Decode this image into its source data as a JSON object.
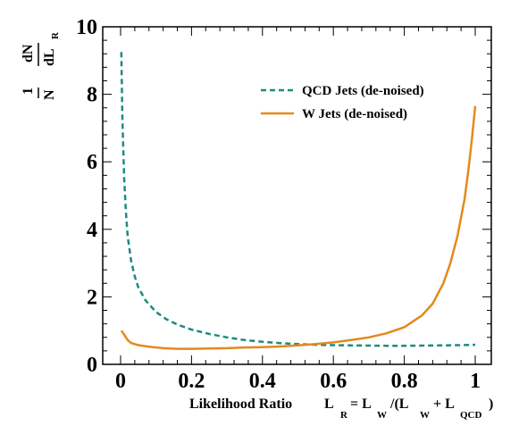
{
  "chart_data": {
    "type": "line",
    "xlabel": {
      "prefix": "Likelihood Ratio",
      "eq_lhs": "L",
      "eq_lhs_sub": "R",
      "eq_mid": "= L",
      "eq_mid_sub": "W",
      "eq_paren": "/(L",
      "eq_paren_sub": "W",
      "eq_plus": "+ L",
      "eq_plus_sub": "QCD",
      "eq_close": ")"
    },
    "ylabel": {
      "num_one": "1",
      "num_dN": "dN",
      "den_N": "N",
      "den_dL": "dL",
      "den_sub": "R"
    },
    "xlim": [
      0,
      1
    ],
    "ylim": [
      0,
      10
    ],
    "xticks": [
      "0",
      "0.2",
      "0.4",
      "0.6",
      "0.8",
      "1"
    ],
    "xtick_values": [
      0,
      0.2,
      0.4,
      0.6,
      0.8,
      1
    ],
    "yticks": [
      "0",
      "2",
      "4",
      "6",
      "8",
      "10"
    ],
    "ytick_values": [
      0,
      2,
      4,
      6,
      8,
      10
    ],
    "legend_position": "top-right",
    "colors": {
      "qcd": "#1f8a80",
      "w": "#e5891b"
    },
    "series": [
      {
        "name": "QCD Jets (de-noised)",
        "style": "dashed",
        "x": [
          0.002,
          0.005,
          0.01,
          0.015,
          0.02,
          0.03,
          0.04,
          0.05,
          0.07,
          0.1,
          0.13,
          0.16,
          0.2,
          0.25,
          0.3,
          0.35,
          0.4,
          0.45,
          0.5,
          0.55,
          0.6,
          0.65,
          0.7,
          0.75,
          0.8,
          0.85,
          0.9,
          0.95,
          1.0
        ],
        "y": [
          9.25,
          7.3,
          5.5,
          4.5,
          3.8,
          3.05,
          2.6,
          2.28,
          1.9,
          1.55,
          1.33,
          1.18,
          1.03,
          0.9,
          0.8,
          0.72,
          0.67,
          0.63,
          0.6,
          0.58,
          0.57,
          0.56,
          0.555,
          0.55,
          0.55,
          0.555,
          0.56,
          0.57,
          0.58
        ]
      },
      {
        "name": "W Jets (de-noised)",
        "style": "solid",
        "x": [
          0.002,
          0.01,
          0.02,
          0.03,
          0.05,
          0.08,
          0.12,
          0.16,
          0.2,
          0.25,
          0.3,
          0.35,
          0.4,
          0.45,
          0.5,
          0.55,
          0.6,
          0.65,
          0.7,
          0.75,
          0.8,
          0.85,
          0.88,
          0.91,
          0.93,
          0.95,
          0.97,
          0.98,
          0.99,
          1.0
        ],
        "y": [
          1.0,
          0.88,
          0.72,
          0.63,
          0.57,
          0.52,
          0.48,
          0.46,
          0.46,
          0.47,
          0.48,
          0.5,
          0.51,
          0.53,
          0.56,
          0.6,
          0.65,
          0.72,
          0.8,
          0.92,
          1.1,
          1.45,
          1.8,
          2.4,
          3.0,
          3.8,
          4.9,
          5.7,
          6.6,
          7.65
        ]
      }
    ]
  }
}
